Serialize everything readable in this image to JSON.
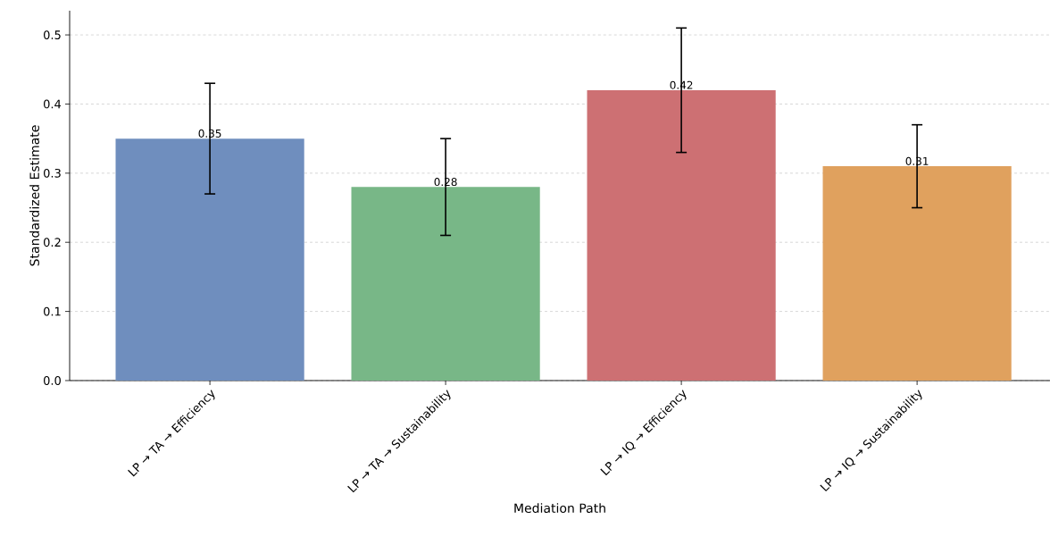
{
  "chart_data": {
    "type": "bar",
    "xlabel": "Mediation Path",
    "ylabel": "Standardized Estimate",
    "categories": [
      "LP → TA → Efficiency",
      "LP → TA → Sustainability",
      "LP → IQ → Efficiency",
      "LP → IQ → Sustainability"
    ],
    "values": [
      0.35,
      0.28,
      0.42,
      0.31
    ],
    "errors": [
      0.08,
      0.07,
      0.09,
      0.06
    ],
    "colors": [
      "#6f8ebe",
      "#78b787",
      "#cd7073",
      "#e0a15e"
    ],
    "data_labels": true,
    "ylim": [
      0,
      0.535
    ],
    "yticks": [
      {
        "value": 0,
        "label": "0.0"
      },
      0.1,
      0.2,
      0.3,
      0.4,
      0.5
    ],
    "grid": "y"
  }
}
